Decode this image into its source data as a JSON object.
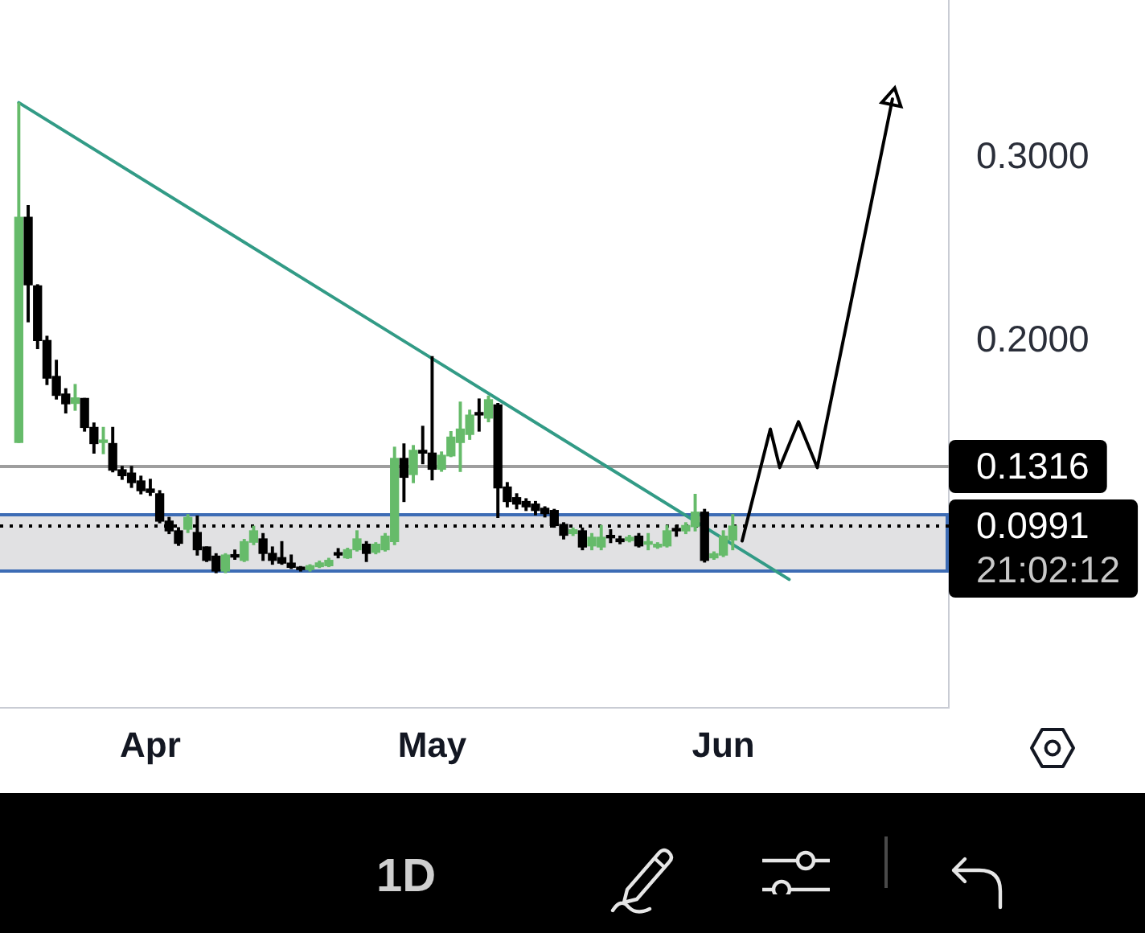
{
  "chart_data": {
    "type": "candlestick",
    "x": [
      "--03-18",
      "--03-19",
      "--03-20",
      "--03-21",
      "--03-22",
      "--03-23",
      "--03-24",
      "--03-25",
      "--03-26",
      "--03-27",
      "--03-28",
      "--03-29",
      "--03-30",
      "--03-31",
      "--04-01",
      "--04-02",
      "--04-03",
      "--04-04",
      "--04-05",
      "--04-06",
      "--04-07",
      "--04-08",
      "--04-09",
      "--04-10",
      "--04-11",
      "--04-12",
      "--04-13",
      "--04-14",
      "--04-15",
      "--04-16",
      "--04-17",
      "--04-18",
      "--04-19",
      "--04-20",
      "--04-21",
      "--04-22",
      "--04-23",
      "--04-24",
      "--04-25",
      "--04-26",
      "--04-27",
      "--04-28",
      "--04-29",
      "--04-30",
      "--05-01",
      "--05-02",
      "--05-03",
      "--05-04",
      "--05-05",
      "--05-06",
      "--05-07",
      "--05-08",
      "--05-09",
      "--05-10",
      "--05-11",
      "--05-12",
      "--05-13",
      "--05-14",
      "--05-15",
      "--05-16",
      "--05-17",
      "--05-18",
      "--05-19",
      "--05-20",
      "--05-21",
      "--05-22",
      "--05-23",
      "--05-24",
      "--05-25",
      "--05-26",
      "--05-27",
      "--05-28",
      "--05-29",
      "--05-30",
      "--05-31",
      "--06-01",
      "--06-02"
    ],
    "ohlc": [
      [
        0.1447,
        0.3298,
        0.1447,
        0.2675
      ],
      [
        0.2675,
        0.2739,
        0.2105,
        0.2307
      ],
      [
        0.2301,
        0.2307,
        0.1959,
        0.2003
      ],
      [
        0.2003,
        0.2026,
        0.1763,
        0.1798
      ],
      [
        0.1807,
        0.1895,
        0.1684,
        0.1704
      ],
      [
        0.1711,
        0.174,
        0.1608,
        0.1658
      ],
      [
        0.166,
        0.1763,
        0.1623,
        0.169
      ],
      [
        0.1687,
        0.1687,
        0.1509,
        0.1529
      ],
      [
        0.1529,
        0.1553,
        0.1389,
        0.1441
      ],
      [
        0.1447,
        0.1529,
        0.1386,
        0.1458
      ],
      [
        0.1441,
        0.1529,
        0.1287,
        0.1296
      ],
      [
        0.1298,
        0.1316,
        0.1246,
        0.1266
      ],
      [
        0.128,
        0.1316,
        0.1202,
        0.1228
      ],
      [
        0.1237,
        0.1263,
        0.1167,
        0.1184
      ],
      [
        0.1193,
        0.1246,
        0.1158,
        0.1175
      ],
      [
        0.1167,
        0.1184,
        0.1009,
        0.1018
      ],
      [
        0.1018,
        0.1038,
        0.095,
        0.0965
      ],
      [
        0.0965,
        0.0982,
        0.0886,
        0.0897
      ],
      [
        0.0974,
        0.1053,
        0.0956,
        0.1038
      ],
      [
        0.0956,
        0.1046,
        0.0833,
        0.0862
      ],
      [
        0.0877,
        0.0877,
        0.0798,
        0.0804
      ],
      [
        0.0827,
        0.084,
        0.0737,
        0.0746
      ],
      [
        0.0746,
        0.084,
        0.0737,
        0.0833
      ],
      [
        0.083,
        0.086,
        0.081,
        0.0822
      ],
      [
        0.0804,
        0.0918,
        0.0798,
        0.0906
      ],
      [
        0.0903,
        0.099,
        0.089,
        0.0965
      ],
      [
        0.0921,
        0.095,
        0.0804,
        0.0842
      ],
      [
        0.0842,
        0.0877,
        0.0783,
        0.0804
      ],
      [
        0.0819,
        0.0906,
        0.0783,
        0.0789
      ],
      [
        0.0789,
        0.0833,
        0.076,
        0.0766
      ],
      [
        0.0766,
        0.077,
        0.0746,
        0.0754
      ],
      [
        0.0754,
        0.078,
        0.0746,
        0.0775
      ],
      [
        0.077,
        0.08,
        0.0765,
        0.079
      ],
      [
        0.0775,
        0.0815,
        0.077,
        0.0804
      ],
      [
        0.084,
        0.0868,
        0.0818,
        0.0833
      ],
      [
        0.0818,
        0.087,
        0.0815,
        0.0862
      ],
      [
        0.0862,
        0.0965,
        0.0855,
        0.0921
      ],
      [
        0.0892,
        0.0906,
        0.0798,
        0.0842
      ],
      [
        0.0848,
        0.09,
        0.084,
        0.0892
      ],
      [
        0.0862,
        0.095,
        0.0855,
        0.0936
      ],
      [
        0.0906,
        0.1421,
        0.089,
        0.136
      ],
      [
        0.136,
        0.1439,
        0.1125,
        0.1257
      ],
      [
        0.1272,
        0.143,
        0.1228,
        0.1404
      ],
      [
        0.1404,
        0.1535,
        0.1331,
        0.1389
      ],
      [
        0.1389,
        0.1915,
        0.1243,
        0.1301
      ],
      [
        0.1301,
        0.1395,
        0.129,
        0.1377
      ],
      [
        0.1374,
        0.1506,
        0.137,
        0.1476
      ],
      [
        0.1447,
        0.1667,
        0.1289,
        0.152
      ],
      [
        0.1491,
        0.1623,
        0.1464,
        0.1596
      ],
      [
        0.161,
        0.1684,
        0.1509,
        0.1597
      ],
      [
        0.158,
        0.17,
        0.156,
        0.168
      ],
      [
        0.1652,
        0.166,
        0.1038,
        0.1199
      ],
      [
        0.1204,
        0.1228,
        0.1096,
        0.1125
      ],
      [
        0.1146,
        0.1167,
        0.1085,
        0.1111
      ],
      [
        0.1125,
        0.114,
        0.1076,
        0.1096
      ],
      [
        0.1111,
        0.1125,
        0.1053,
        0.1076
      ],
      [
        0.1088,
        0.1096,
        0.1041,
        0.1059
      ],
      [
        0.1076,
        0.1082,
        0.0985,
        0.0994
      ],
      [
        0.1,
        0.1009,
        0.0921,
        0.0941
      ],
      [
        0.095,
        0.098,
        0.094,
        0.0971
      ],
      [
        0.0965,
        0.098,
        0.0862,
        0.0877
      ],
      [
        0.0883,
        0.095,
        0.0862,
        0.093
      ],
      [
        0.0877,
        0.0994,
        0.0862,
        0.093
      ],
      [
        0.0936,
        0.0971,
        0.0901,
        0.0927
      ],
      [
        0.0921,
        0.0936,
        0.0895,
        0.0906
      ],
      [
        0.0912,
        0.094,
        0.0905,
        0.093
      ],
      [
        0.0936,
        0.095,
        0.0877,
        0.0883
      ],
      [
        0.0892,
        0.095,
        0.0862,
        0.0906
      ],
      [
        0.0877,
        0.09,
        0.087,
        0.0892
      ],
      [
        0.0883,
        0.0994,
        0.0877,
        0.0965
      ],
      [
        0.0974,
        0.0994,
        0.0936,
        0.0965
      ],
      [
        0.0965,
        0.1009,
        0.095,
        0.0994
      ],
      [
        0.0988,
        0.1164,
        0.0965,
        0.1067
      ],
      [
        0.1067,
        0.1082,
        0.0795,
        0.0804
      ],
      [
        0.0818,
        0.085,
        0.081,
        0.084
      ],
      [
        0.0833,
        0.0965,
        0.0825,
        0.0936
      ],
      [
        0.0915,
        0.1053,
        0.0862,
        0.0991
      ]
    ],
    "colors": [
      "#66bb6a",
      "#000000",
      "#000000",
      "#000000",
      "#000000",
      "#000000",
      "#66bb6a",
      "#000000",
      "#000000",
      "#66bb6a",
      "#000000",
      "#000000",
      "#000000",
      "#000000",
      "#000000",
      "#000000",
      "#000000",
      "#000000",
      "#66bb6a",
      "#000000",
      "#000000",
      "#000000",
      "#66bb6a",
      "#000000",
      "#66bb6a",
      "#66bb6a",
      "#000000",
      "#000000",
      "#000000",
      "#000000",
      "#000000",
      "#66bb6a",
      "#66bb6a",
      "#66bb6a",
      "#000000",
      "#66bb6a",
      "#66bb6a",
      "#000000",
      "#66bb6a",
      "#66bb6a",
      "#66bb6a",
      "#000000",
      "#66bb6a",
      "#000000",
      "#000000",
      "#66bb6a",
      "#66bb6a",
      "#66bb6a",
      "#66bb6a",
      "#000000",
      "#66bb6a",
      "#000000",
      "#000000",
      "#000000",
      "#000000",
      "#000000",
      "#000000",
      "#000000",
      "#000000",
      "#66bb6a",
      "#000000",
      "#66bb6a",
      "#66bb6a",
      "#000000",
      "#000000",
      "#66bb6a",
      "#000000",
      "#66bb6a",
      "#66bb6a",
      "#66bb6a",
      "#000000",
      "#66bb6a",
      "#66bb6a",
      "#000000",
      "#66bb6a",
      "#66bb6a",
      "#66bb6a"
    ],
    "series": [
      {
        "type": "line",
        "x": [
          "--03-18",
          "--06-08"
        ],
        "values": [
          0.33,
          0.07
        ],
        "color": "#329b86"
      },
      {
        "type": "line",
        "x": [
          "--06-03",
          "--06-06",
          "--06-07",
          "--06-09",
          "--06-11",
          "--06-19"
        ],
        "values": [
          0.091,
          0.152,
          0.131,
          0.156,
          0.131,
          0.332
        ],
        "color": "#000000"
      }
    ],
    "xlim": [
      "--03-16",
      "--06-25"
    ],
    "xticks": [
      {
        "value": "--04-01",
        "label": "Apr"
      },
      {
        "value": "--05-01",
        "label": "May"
      },
      {
        "value": "--06-01",
        "label": "Jun"
      }
    ],
    "ylim": [
      0,
      0.386
    ],
    "yticks": [
      {
        "value": 0.3,
        "label": "0.3000"
      },
      {
        "value": 0.2,
        "label": "0.2000"
      }
    ],
    "ref_lines": [
      {
        "axis": "y",
        "value": 0.1316,
        "label": "0.1316",
        "color": "#9e9e9e"
      },
      {
        "axis": "y",
        "value": 0.0991,
        "label": "0.0991",
        "color": "#000000",
        "line_style": "dotted"
      }
    ],
    "bands": [
      {
        "axis": "y",
        "from": 0.0746,
        "to": 0.1053,
        "color": "#e1e1e3"
      }
    ],
    "annotations": [
      "21:02:12",
      "1D"
    ]
  }
}
